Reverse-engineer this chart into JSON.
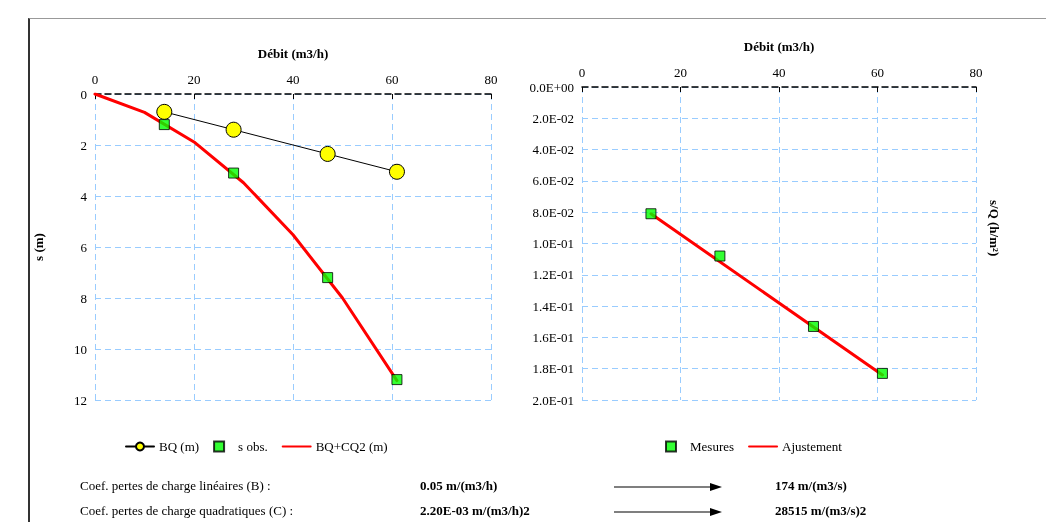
{
  "chart_data": [
    {
      "type": "line",
      "xlabel": "Débit (m3/h)",
      "ylabel": "s (m)",
      "xlim": [
        0,
        80
      ],
      "xticks": [
        0,
        20,
        40,
        60,
        80
      ],
      "ylim": [
        12,
        0
      ],
      "yticks": [
        0,
        2,
        4,
        6,
        8,
        10,
        12
      ],
      "grid": true,
      "legend": "bottom",
      "series": [
        {
          "name": "BQ (m)",
          "type": "line",
          "color": "#ffff00",
          "marker": "circle",
          "line_style": "solid",
          "x": [
            14,
            28,
            47,
            61
          ],
          "values": [
            0.7,
            1.4,
            2.35,
            3.05
          ]
        },
        {
          "name": "s obs.",
          "type": "scatter",
          "color": "#00ff00",
          "marker": "square",
          "x": [
            14,
            28,
            47,
            61
          ],
          "values": [
            1.2,
            3.1,
            7.2,
            11.2
          ]
        },
        {
          "name": "BQ+CQ2 (m)",
          "type": "line",
          "color": "#ff0000",
          "marker": "none",
          "line_style": "solid",
          "x": [
            0,
            10,
            20,
            30,
            40,
            50,
            61
          ],
          "values": [
            0,
            0.72,
            1.88,
            3.48,
            5.52,
            8.0,
            11.24
          ]
        }
      ],
      "annotations": [
        "Coef. pertes de charge linéaires (B) :",
        "0.05 m/(m3/h)",
        "174 m/(m3/s)",
        "Coef. pertes de charge quadratiques  (C) :",
        "2.20E-03 m/(m3/h)2",
        "28515  m/(m3/s)2"
      ]
    },
    {
      "type": "line",
      "xlabel": "Débit (m3/h)",
      "ylabel": "s/Q (h/m²)",
      "xlim": [
        0,
        80
      ],
      "xticks": [
        0,
        20,
        40,
        60,
        80
      ],
      "ylim": [
        0.2,
        0
      ],
      "yticks": [
        {
          "value": 0,
          "label": "0.0E+00"
        },
        {
          "value": 0.02,
          "label": "2.0E-02"
        },
        {
          "value": 0.04,
          "label": "4.0E-02"
        },
        {
          "value": 0.06,
          "label": "6.0E-02"
        },
        {
          "value": 0.08,
          "label": "8.0E-02"
        },
        {
          "value": 0.1,
          "label": "1.0E-01"
        },
        {
          "value": 0.12,
          "label": "1.2E-01"
        },
        {
          "value": 0.14,
          "label": "1.4E-01"
        },
        {
          "value": 0.16,
          "label": "1.6E-01"
        },
        {
          "value": 0.18,
          "label": "1.8E-01"
        },
        {
          "value": 0.2,
          "label": "2.0E-01"
        }
      ],
      "grid": true,
      "legend": "bottom",
      "series": [
        {
          "name": "Mesures",
          "type": "scatter",
          "color": "#00ff00",
          "marker": "square",
          "x": [
            14,
            28,
            47,
            61
          ],
          "values": [
            0.081,
            0.108,
            0.153,
            0.183
          ]
        },
        {
          "name": "Ajustement",
          "type": "line",
          "color": "#ff0000",
          "marker": "none",
          "line_style": "solid",
          "x": [
            14,
            61
          ],
          "values": [
            0.081,
            0.184
          ]
        }
      ]
    }
  ]
}
